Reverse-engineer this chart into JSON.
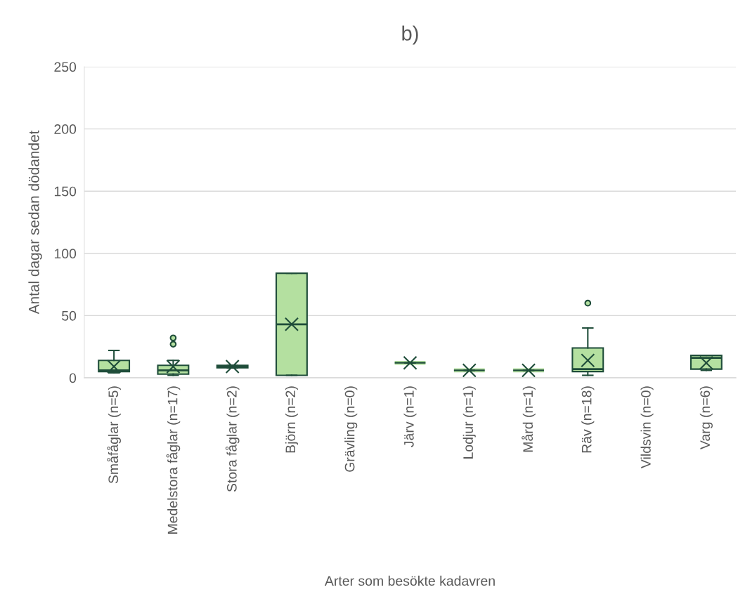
{
  "chart_data": {
    "type": "box",
    "title": "b)",
    "xlabel": "Arter som besökte kadavren",
    "ylabel": "Antal dagar sedan dödandet",
    "categories": [
      "Småfåglar (n=5)",
      "Medelstora fåglar (n=17)",
      "Stora fåglar (n=2)",
      "Björn (n=2)",
      "Grävling (n=0)",
      "Järv (n=1)",
      "Lodjur (n=1)",
      "Mård (n=1)",
      "Räv (n=18)",
      "Vildsvin (n=0)",
      "Varg (n=6)"
    ],
    "series": [
      {
        "color": "#b4e0a0",
        "boxes": [
          {
            "low": 4,
            "q1": 5,
            "median": 6,
            "q3": 14,
            "high": 22,
            "mean": 9
          },
          {
            "low": 2,
            "q1": 3,
            "median": 6,
            "q3": 10,
            "high": 14,
            "mean": 9,
            "outliers": [
              27,
              32
            ]
          },
          {
            "low": 8,
            "q1": 8,
            "median": 9,
            "q3": 10,
            "high": 10,
            "mean": 9
          },
          {
            "low": 2,
            "q1": 2,
            "median": 43,
            "q3": 84,
            "high": 84,
            "mean": 43
          },
          null,
          {
            "low": 12,
            "q1": 12,
            "median": 12,
            "q3": 12,
            "high": 12,
            "mean": 12
          },
          {
            "low": 6,
            "q1": 6,
            "median": 6,
            "q3": 6,
            "high": 6,
            "mean": 6
          },
          {
            "low": 6,
            "q1": 6,
            "median": 6,
            "q3": 6,
            "high": 6,
            "mean": 6
          },
          {
            "low": 2,
            "q1": 5,
            "median": 7,
            "q3": 24,
            "high": 40,
            "mean": 14,
            "outliers": [
              60
            ]
          },
          null,
          {
            "low": 6,
            "q1": 7,
            "median": 16,
            "q3": 18,
            "high": 18,
            "mean": 12
          }
        ]
      }
    ],
    "ylim": [
      0,
      250
    ],
    "yticks": [
      0,
      50,
      100,
      150,
      200,
      250
    ],
    "grid": "y",
    "legend": false
  }
}
